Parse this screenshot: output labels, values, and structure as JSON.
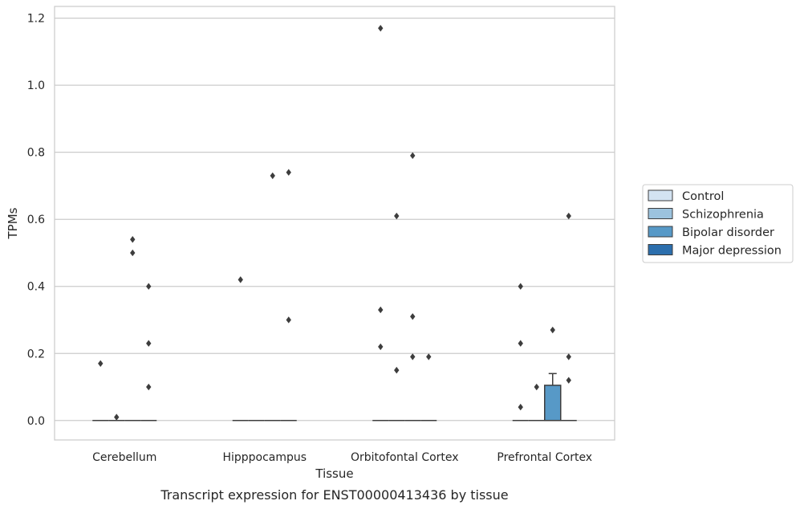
{
  "chart_data": {
    "type": "box",
    "title": "Transcript expression for ENST00000413436 by tissue",
    "xlabel": "Tissue",
    "ylabel": "TPMs",
    "ylim": [
      -0.058,
      1.235
    ],
    "yticks": [
      0.0,
      0.2,
      0.4,
      0.6,
      0.8,
      1.0,
      1.2
    ],
    "grid": "horizontal",
    "legend_position": "right",
    "categories": [
      "Cerebellum",
      "Hipppocampus",
      "Orbitofontal Cortex",
      "Prefrontal Cortex"
    ],
    "series": [
      {
        "name": "Control",
        "color": "#d3e3f2",
        "boxes": [
          {
            "q1": 0,
            "median": 0,
            "q3": 0,
            "whisker_low": 0,
            "whisker_high": 0,
            "outliers": [
              0.17
            ]
          },
          {
            "q1": 0,
            "median": 0,
            "q3": 0,
            "whisker_low": 0,
            "whisker_high": 0,
            "outliers": [
              0.42
            ]
          },
          {
            "q1": 0,
            "median": 0,
            "q3": 0,
            "whisker_low": 0,
            "whisker_high": 0,
            "outliers": [
              0.33,
              0.22,
              1.17
            ]
          },
          {
            "q1": 0,
            "median": 0,
            "q3": 0,
            "whisker_low": 0,
            "whisker_high": 0,
            "outliers": [
              0.4,
              0.23,
              0.04
            ]
          }
        ]
      },
      {
        "name": "Schizophrenia",
        "color": "#9cc3de",
        "boxes": [
          {
            "q1": 0,
            "median": 0,
            "q3": 0,
            "whisker_low": 0,
            "whisker_high": 0,
            "outliers": [
              0.01
            ]
          },
          {
            "q1": 0,
            "median": 0,
            "q3": 0,
            "whisker_low": 0,
            "whisker_high": 0,
            "outliers": []
          },
          {
            "q1": 0,
            "median": 0,
            "q3": 0,
            "whisker_low": 0,
            "whisker_high": 0,
            "outliers": [
              0.61,
              0.15
            ]
          },
          {
            "q1": 0,
            "median": 0,
            "q3": 0,
            "whisker_low": 0,
            "whisker_high": 0,
            "outliers": [
              0.1
            ]
          }
        ]
      },
      {
        "name": "Bipolar disorder",
        "color": "#5799c7",
        "boxes": [
          {
            "q1": 0,
            "median": 0,
            "q3": 0,
            "whisker_low": 0,
            "whisker_high": 0,
            "outliers": [
              0.54,
              0.5
            ]
          },
          {
            "q1": 0,
            "median": 0,
            "q3": 0,
            "whisker_low": 0,
            "whisker_high": 0,
            "outliers": [
              0.73
            ]
          },
          {
            "q1": 0,
            "median": 0,
            "q3": 0,
            "whisker_low": 0,
            "whisker_high": 0,
            "outliers": [
              0.79,
              0.31,
              0.19
            ]
          },
          {
            "q1": 0,
            "median": 0,
            "q3": 0.105,
            "whisker_low": 0,
            "whisker_high": 0.14,
            "outliers": [
              0.27
            ]
          }
        ]
      },
      {
        "name": "Major depression",
        "color": "#2c6fad",
        "boxes": [
          {
            "q1": 0,
            "median": 0,
            "q3": 0,
            "whisker_low": 0,
            "whisker_high": 0,
            "outliers": [
              0.4,
              0.23,
              0.1
            ]
          },
          {
            "q1": 0,
            "median": 0,
            "q3": 0,
            "whisker_low": 0,
            "whisker_high": 0,
            "outliers": [
              0.74,
              0.3
            ]
          },
          {
            "q1": 0,
            "median": 0,
            "q3": 0,
            "whisker_low": 0,
            "whisker_high": 0,
            "outliers": [
              0.19
            ]
          },
          {
            "q1": 0,
            "median": 0,
            "q3": 0,
            "whisker_low": 0,
            "whisker_high": 0,
            "outliers": [
              0.61,
              0.19,
              0.12
            ]
          }
        ]
      }
    ]
  }
}
